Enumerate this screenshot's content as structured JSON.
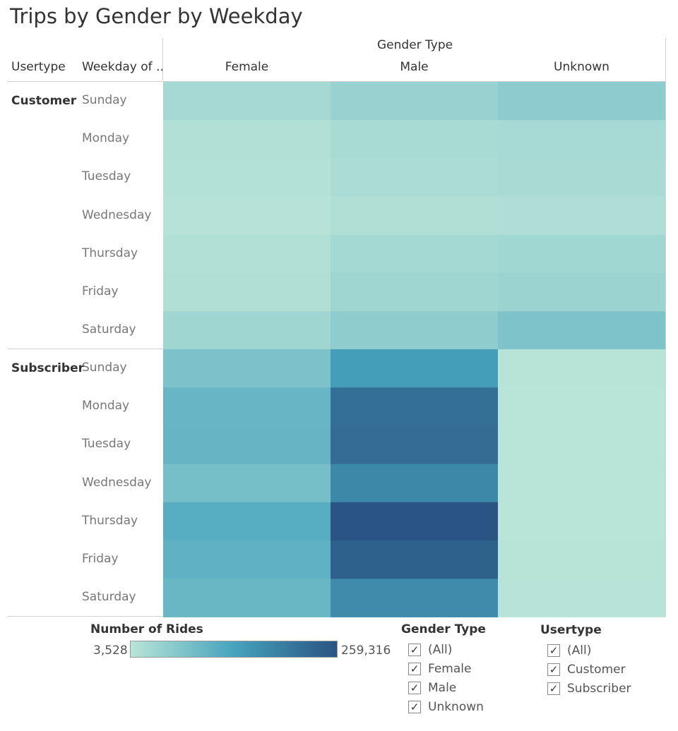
{
  "title": "Trips by Gender by Weekday",
  "headers": {
    "gender_type": "Gender Type",
    "usertype": "Usertype",
    "weekday": "Weekday of .."
  },
  "chart_data": {
    "type": "heatmap",
    "title": "Trips by Gender by Weekday",
    "columns_label": "Gender Type",
    "columns": [
      "Female",
      "Male",
      "Unknown"
    ],
    "row_groups": [
      {
        "name": "Customer",
        "rows": [
          "Sunday",
          "Monday",
          "Tuesday",
          "Wednesday",
          "Thursday",
          "Friday",
          "Saturday"
        ],
        "values": [
          [
            25000,
            40000,
            52000
          ],
          [
            12000,
            22000,
            24000
          ],
          [
            9000,
            19000,
            21000
          ],
          [
            7000,
            14000,
            15000
          ],
          [
            12000,
            28000,
            30000
          ],
          [
            13000,
            31000,
            37000
          ],
          [
            31000,
            51000,
            68000
          ]
        ]
      },
      {
        "name": "Subscriber",
        "rows": [
          "Sunday",
          "Monday",
          "Tuesday",
          "Wednesday",
          "Thursday",
          "Friday",
          "Saturday"
        ],
        "values": [
          [
            70000,
            140000,
            4500
          ],
          [
            95000,
            215000,
            4000
          ],
          [
            96000,
            220000,
            4000
          ],
          [
            78000,
            175000,
            3800
          ],
          [
            112000,
            259316,
            3528
          ],
          [
            104000,
            238000,
            4200
          ],
          [
            92000,
            170000,
            5500
          ]
        ]
      }
    ],
    "color_scale": {
      "min": 3528,
      "max": 259316,
      "colors": [
        "#b9e4d8",
        "#46a3bd",
        "#2a5483"
      ]
    }
  },
  "legend": {
    "title": "Number of Rides",
    "min_label": "3,528",
    "max_label": "259,316"
  },
  "filters": {
    "gender": {
      "title": "Gender Type",
      "options": [
        {
          "label": "(All)",
          "checked": true
        },
        {
          "label": "Female",
          "checked": true
        },
        {
          "label": "Male",
          "checked": true
        },
        {
          "label": "Unknown",
          "checked": true
        }
      ]
    },
    "usertype": {
      "title": "Usertype",
      "options": [
        {
          "label": "(All)",
          "checked": true
        },
        {
          "label": "Customer",
          "checked": true
        },
        {
          "label": "Subscriber",
          "checked": true
        }
      ]
    }
  }
}
